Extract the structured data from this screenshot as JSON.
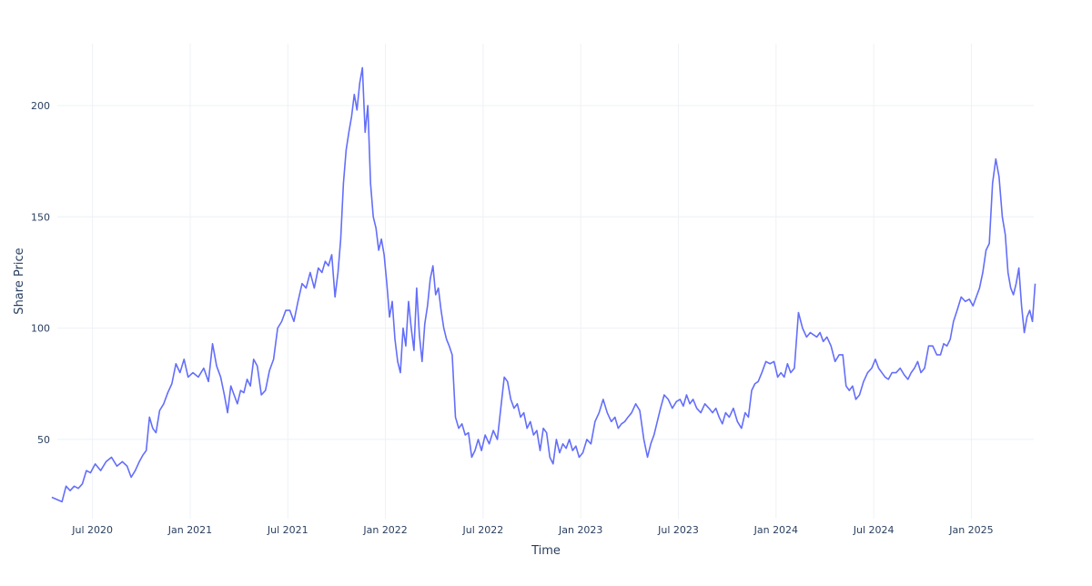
{
  "chart_data": {
    "type": "line",
    "x_title": "Time",
    "y_title": "Share Price",
    "color": "#636efa",
    "grid": true,
    "xlim": [
      "2020-04",
      "2025-05"
    ],
    "ylim": [
      14.4,
      227.8
    ],
    "yticks": [
      50,
      100,
      150,
      200
    ],
    "xticks": [
      {
        "value": "2020-07",
        "label": "Jul 2020"
      },
      {
        "value": "2021-01",
        "label": "Jan 2021"
      },
      {
        "value": "2021-07",
        "label": "Jul 2021"
      },
      {
        "value": "2022-01",
        "label": "Jan 2022"
      },
      {
        "value": "2022-07",
        "label": "Jul 2022"
      },
      {
        "value": "2023-01",
        "label": "Jan 2023"
      },
      {
        "value": "2023-07",
        "label": "Jul 2023"
      },
      {
        "value": "2024-01",
        "label": "Jan 2024"
      },
      {
        "value": "2024-07",
        "label": "Jul 2024"
      },
      {
        "value": "2025-01",
        "label": "Jan 2025"
      }
    ],
    "x": [
      "2020-04",
      "2020-05",
      "2020-05",
      "2020-05",
      "2020-05",
      "2020-06",
      "2020-06",
      "2020-06",
      "2020-06",
      "2020-07",
      "2020-07",
      "2020-07",
      "2020-08",
      "2020-08",
      "2020-08",
      "2020-09",
      "2020-09",
      "2020-09",
      "2020-09",
      "2020-10",
      "2020-10",
      "2020-10",
      "2020-10",
      "2020-10",
      "2020-11",
      "2020-11",
      "2020-11",
      "2020-11",
      "2020-12",
      "2020-12",
      "2020-12",
      "2020-12",
      "2021-01",
      "2021-01",
      "2021-01",
      "2021-02",
      "2021-02",
      "2021-02",
      "2021-02",
      "2021-03",
      "2021-03",
      "2021-03",
      "2021-03",
      "2021-03",
      "2021-04",
      "2021-04",
      "2021-04",
      "2021-04",
      "2021-04",
      "2021-05",
      "2021-05",
      "2021-05",
      "2021-05",
      "2021-06",
      "2021-06",
      "2021-06",
      "2021-06",
      "2021-07",
      "2021-07",
      "2021-07",
      "2021-07",
      "2021-08",
      "2021-08",
      "2021-08",
      "2021-08",
      "2021-09",
      "2021-09",
      "2021-09",
      "2021-09",
      "2021-09",
      "2021-10",
      "2021-10",
      "2021-10",
      "2021-10",
      "2021-10",
      "2021-10",
      "2021-11",
      "2021-11",
      "2021-11",
      "2021-11",
      "2021-11",
      "2021-11",
      "2021-12",
      "2021-12",
      "2021-12",
      "2021-12",
      "2021-12",
      "2021-12",
      "2022-01",
      "2022-01",
      "2022-01",
      "2022-01",
      "2022-01",
      "2022-01",
      "2022-02",
      "2022-02",
      "2022-02",
      "2022-02",
      "2022-02",
      "2022-02",
      "2022-03",
      "2022-03",
      "2022-03",
      "2022-03",
      "2022-03",
      "2022-03",
      "2022-04",
      "2022-04",
      "2022-04",
      "2022-04",
      "2022-04",
      "2022-04",
      "2022-05",
      "2022-05",
      "2022-05",
      "2022-05",
      "2022-05",
      "2022-06",
      "2022-06",
      "2022-06",
      "2022-06",
      "2022-06",
      "2022-07",
      "2022-07",
      "2022-07",
      "2022-07",
      "2022-08",
      "2022-08",
      "2022-08",
      "2022-08",
      "2022-08",
      "2022-09",
      "2022-09",
      "2022-09",
      "2022-09",
      "2022-09",
      "2022-10",
      "2022-10",
      "2022-10",
      "2022-10",
      "2022-10",
      "2022-11",
      "2022-11",
      "2022-11",
      "2022-11",
      "2022-11",
      "2022-12",
      "2022-12",
      "2022-12",
      "2022-12",
      "2022-12",
      "2023-01",
      "2023-01",
      "2023-01",
      "2023-01",
      "2023-02",
      "2023-02",
      "2023-02",
      "2023-02",
      "2023-03",
      "2023-03",
      "2023-03",
      "2023-03",
      "2023-03",
      "2023-04",
      "2023-04",
      "2023-04",
      "2023-04",
      "2023-05",
      "2023-05",
      "2023-05",
      "2023-05",
      "2023-05",
      "2023-06",
      "2023-06",
      "2023-06",
      "2023-06",
      "2023-07",
      "2023-07",
      "2023-07",
      "2023-07",
      "2023-07",
      "2023-08",
      "2023-08",
      "2023-08",
      "2023-08",
      "2023-09",
      "2023-09",
      "2023-09",
      "2023-09",
      "2023-09",
      "2023-10",
      "2023-10",
      "2023-10",
      "2023-10",
      "2023-11",
      "2023-11",
      "2023-11",
      "2023-11",
      "2023-11",
      "2023-12",
      "2023-12",
      "2023-12",
      "2023-12",
      "2024-01",
      "2024-01",
      "2024-01",
      "2024-01",
      "2024-01",
      "2024-02",
      "2024-02",
      "2024-02",
      "2024-02",
      "2024-03",
      "2024-03",
      "2024-03",
      "2024-03",
      "2024-03",
      "2024-04",
      "2024-04",
      "2024-04",
      "2024-04",
      "2024-05",
      "2024-05",
      "2024-05",
      "2024-05",
      "2024-05",
      "2024-06",
      "2024-06",
      "2024-06",
      "2024-06",
      "2024-07",
      "2024-07",
      "2024-07",
      "2024-07",
      "2024-07",
      "2024-08",
      "2024-08",
      "2024-08",
      "2024-08",
      "2024-09",
      "2024-09",
      "2024-09",
      "2024-09",
      "2024-09",
      "2024-10",
      "2024-10",
      "2024-10",
      "2024-10",
      "2024-11",
      "2024-11",
      "2024-11",
      "2024-11",
      "2024-11",
      "2024-12",
      "2024-12",
      "2024-12",
      "2024-12",
      "2025-01",
      "2025-01",
      "2025-01",
      "2025-01",
      "2025-01",
      "2025-02",
      "2025-02",
      "2025-02",
      "2025-02",
      "2025-02",
      "2025-03",
      "2025-03",
      "2025-03",
      "2025-03",
      "2025-03",
      "2025-03",
      "2025-04",
      "2025-04",
      "2025-04",
      "2025-04",
      "2025-04",
      "2025-04"
    ],
    "values": [
      24,
      22,
      29,
      27,
      29,
      28,
      30,
      36,
      35,
      39,
      36,
      40,
      42,
      38,
      40,
      38,
      33,
      36,
      40,
      43,
      45,
      60,
      55,
      53,
      63,
      66,
      71,
      75,
      84,
      80,
      86,
      78,
      80,
      78,
      82,
      76,
      93,
      83,
      78,
      70,
      62,
      74,
      70,
      66,
      72,
      71,
      77,
      74,
      86,
      83,
      70,
      72,
      81,
      86,
      100,
      103,
      108,
      108,
      103,
      112,
      120,
      118,
      125,
      118,
      127,
      125,
      130,
      128,
      133,
      114,
      125,
      140,
      165,
      180,
      188,
      195,
      205,
      198,
      210,
      217,
      188,
      200,
      165,
      150,
      145,
      135,
      140,
      133,
      120,
      105,
      112,
      95,
      85,
      80,
      100,
      92,
      112,
      100,
      90,
      118,
      97,
      85,
      102,
      110,
      122,
      128,
      115,
      118,
      108,
      100,
      95,
      92,
      88,
      60,
      55,
      57,
      52,
      53,
      42,
      45,
      50,
      45,
      52,
      48,
      54,
      50,
      65,
      78,
      76,
      68,
      64,
      66,
      60,
      62,
      55,
      58,
      52,
      54,
      45,
      55,
      53,
      42,
      39,
      50,
      44,
      48,
      46,
      50,
      45,
      47,
      42,
      44,
      50,
      48,
      58,
      62,
      68,
      62,
      58,
      60,
      55,
      57,
      58,
      60,
      62,
      66,
      63,
      50,
      42,
      48,
      52,
      58,
      64,
      70,
      68,
      64,
      67,
      68,
      65,
      70,
      66,
      68,
      64,
      62,
      66,
      64,
      62,
      64,
      60,
      57,
      62,
      60,
      64,
      58,
      55,
      62,
      60,
      72,
      75,
      76,
      80,
      85,
      84,
      85,
      78,
      80,
      78,
      84,
      80,
      82,
      107,
      100,
      96,
      98,
      97,
      96,
      98,
      94,
      96,
      92,
      85,
      88,
      88,
      74,
      72,
      74,
      68,
      70,
      76,
      80,
      82,
      86,
      82,
      80,
      78,
      77,
      80,
      80,
      82,
      79,
      77,
      80,
      82,
      85,
      80,
      82,
      92,
      92,
      88,
      88,
      93,
      92,
      95,
      103,
      108,
      114,
      112,
      113,
      110,
      114,
      118,
      125,
      135,
      138,
      165,
      176,
      168,
      150,
      142,
      125,
      118,
      115,
      120,
      127,
      110,
      98,
      105,
      108,
      103,
      120
    ]
  }
}
